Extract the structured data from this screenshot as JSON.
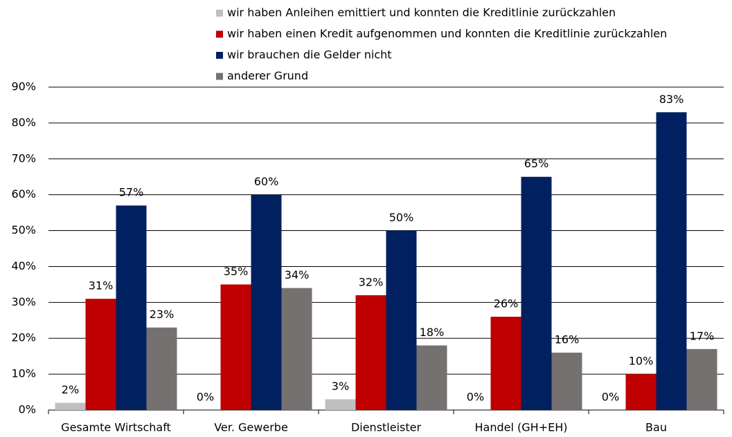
{
  "chart_data": {
    "type": "bar",
    "categories": [
      "Gesamte Wirtschaft",
      "Ver. Gewerbe",
      "Dienstleister",
      "Handel (GH+EH)",
      "Bau"
    ],
    "series": [
      {
        "name": "wir haben Anleihen emittiert und konnten die Kreditlinie zurückzahlen",
        "color": "#bfbfbf",
        "values": [
          2,
          0,
          3,
          0,
          0
        ],
        "value_labels": [
          "2%",
          "0%",
          "3%",
          "0%",
          "0%"
        ]
      },
      {
        "name": "wir haben einen Kredit aufgenommen und konnten die Kreditlinie zurückzahlen",
        "color": "#c00000",
        "values": [
          31,
          35,
          32,
          26,
          10
        ],
        "value_labels": [
          "31%",
          "35%",
          "32%",
          "26%",
          "10%"
        ]
      },
      {
        "name": "wir brauchen die Gelder nicht",
        "color": "#002060",
        "values": [
          57,
          60,
          50,
          65,
          83
        ],
        "value_labels": [
          "57%",
          "60%",
          "50%",
          "65%",
          "83%"
        ]
      },
      {
        "name": "anderer Grund",
        "color": "#767171",
        "values": [
          23,
          34,
          18,
          16,
          17
        ],
        "value_labels": [
          "23%",
          "34%",
          "18%",
          "16%",
          "17%"
        ]
      }
    ],
    "ylim": [
      0,
      90
    ],
    "yticks": [
      {
        "value": 0,
        "label": "0%"
      },
      {
        "value": 10,
        "label": "10%"
      },
      {
        "value": 20,
        "label": "20%"
      },
      {
        "value": 30,
        "label": "30%"
      },
      {
        "value": 40,
        "label": "40%"
      },
      {
        "value": 50,
        "label": "50%"
      },
      {
        "value": 60,
        "label": "60%"
      },
      {
        "value": 70,
        "label": "70%"
      },
      {
        "value": 80,
        "label": "80%"
      },
      {
        "value": 90,
        "label": "90%"
      }
    ],
    "grid": true
  }
}
